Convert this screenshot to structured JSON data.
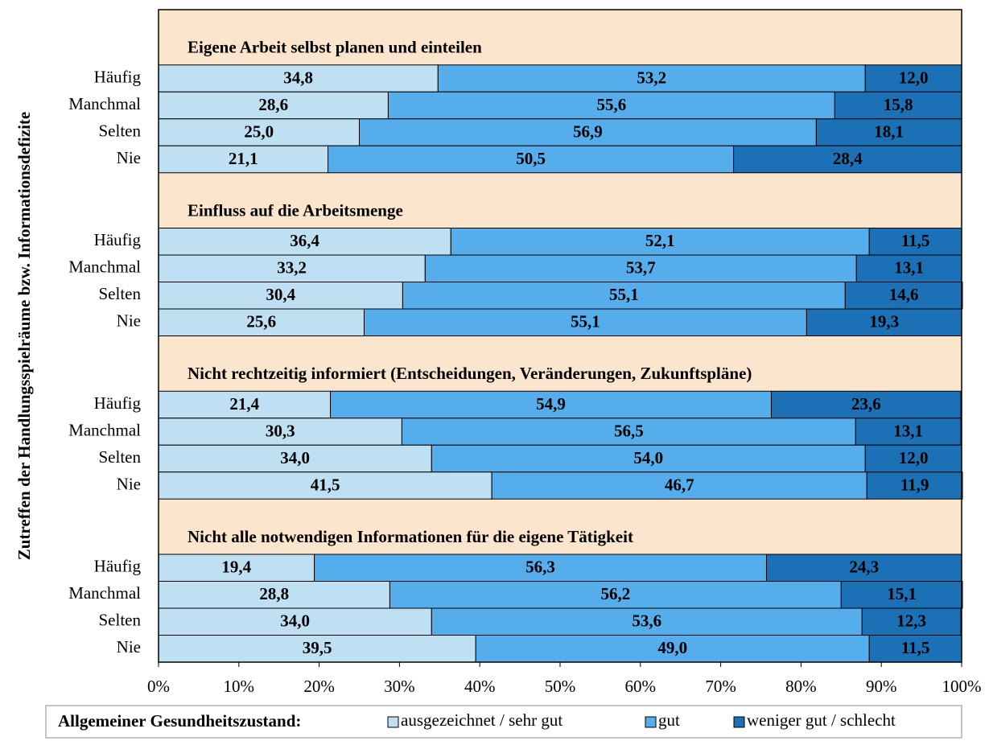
{
  "chart_data": {
    "type": "stacked_barh",
    "ylabel": "Zutreffen der Handlungsspielräume bzw. Informationsdefizite",
    "legend_title": "Allgemeiner Gesundheitszustand:",
    "group_titles": [
      "Eigene Arbeit selbst planen und einteilen",
      "Einfluss auf die Arbeitsmenge",
      "Nicht rechtzeitig informiert (Entscheidungen, Veränderungen, Zukunftspläne)",
      "Nicht alle notwendigen Informationen für die eigene Tätigkeit"
    ],
    "categories": [
      "Häufig",
      "Manchmal",
      "Selten",
      "Nie",
      "Häufig",
      "Manchmal",
      "Selten",
      "Nie",
      "Häufig",
      "Manchmal",
      "Selten",
      "Nie",
      "Häufig",
      "Manchmal",
      "Selten",
      "Nie"
    ],
    "series": [
      {
        "name": "ausgezeichnet / sehr gut",
        "color": "#bfe0f3",
        "values": [
          34.8,
          28.6,
          25.0,
          21.1,
          36.4,
          33.2,
          30.4,
          25.6,
          21.4,
          30.3,
          34.0,
          41.5,
          19.4,
          28.8,
          34.0,
          39.5
        ],
        "value_labels": [
          "34,8",
          "28,6",
          "25,0",
          "21,1",
          "36,4",
          "33,2",
          "30,4",
          "25,6",
          "21,4",
          "30,3",
          "34,0",
          "41,5",
          "19,4",
          "28,8",
          "34,0",
          "39,5"
        ]
      },
      {
        "name": "gut",
        "color": "#56adeb",
        "values": [
          53.2,
          55.6,
          56.9,
          50.5,
          52.1,
          53.7,
          55.1,
          55.1,
          54.9,
          56.5,
          54.0,
          46.7,
          56.3,
          56.2,
          53.6,
          49.0
        ],
        "value_labels": [
          "53,2",
          "55,6",
          "56,9",
          "50,5",
          "52,1",
          "53,7",
          "55,1",
          "55,1",
          "54,9",
          "56,5",
          "54,0",
          "46,7",
          "56,3",
          "56,2",
          "53,6",
          "49,0"
        ]
      },
      {
        "name": "weniger gut / schlecht",
        "color": "#1b70b6",
        "values": [
          12.0,
          15.8,
          18.1,
          28.4,
          11.5,
          13.1,
          14.6,
          19.3,
          23.6,
          13.1,
          12.0,
          11.9,
          24.3,
          15.1,
          12.3,
          11.5
        ],
        "value_labels": [
          "12,0",
          "15,8",
          "18,1",
          "28,4",
          "11,5",
          "13,1",
          "14,6",
          "19,3",
          "23,6",
          "13,1",
          "12,0",
          "11,9",
          "24,3",
          "15,1",
          "12,3",
          "11,5"
        ]
      }
    ],
    "header_color": "#fce5cd",
    "xlim": [
      0,
      100
    ],
    "xticks": [
      {
        "value": 0,
        "label": "0%"
      },
      {
        "value": 10,
        "label": "10%"
      },
      {
        "value": 20,
        "label": "20%"
      },
      {
        "value": 30,
        "label": "30%"
      },
      {
        "value": 40,
        "label": "40%"
      },
      {
        "value": 50,
        "label": "50%"
      },
      {
        "value": 60,
        "label": "60%"
      },
      {
        "value": 70,
        "label": "70%"
      },
      {
        "value": 80,
        "label": "80%"
      },
      {
        "value": 90,
        "label": "90%"
      },
      {
        "value": 100,
        "label": "100%"
      }
    ]
  }
}
